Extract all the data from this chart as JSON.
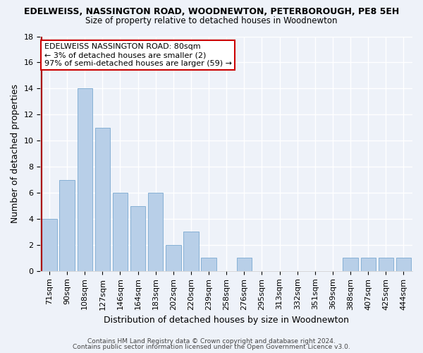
{
  "title": "EDELWEISS, NASSINGTON ROAD, WOODNEWTON, PETERBOROUGH, PE8 5EH",
  "subtitle": "Size of property relative to detached houses in Woodnewton",
  "xlabel": "Distribution of detached houses by size in Woodnewton",
  "ylabel": "Number of detached properties",
  "bar_labels": [
    "71sqm",
    "90sqm",
    "108sqm",
    "127sqm",
    "146sqm",
    "164sqm",
    "183sqm",
    "202sqm",
    "220sqm",
    "239sqm",
    "258sqm",
    "276sqm",
    "295sqm",
    "313sqm",
    "332sqm",
    "351sqm",
    "369sqm",
    "388sqm",
    "407sqm",
    "425sqm",
    "444sqm"
  ],
  "bar_values": [
    4,
    7,
    14,
    11,
    6,
    5,
    6,
    2,
    3,
    1,
    0,
    1,
    0,
    0,
    0,
    0,
    0,
    1,
    1,
    1,
    1
  ],
  "bar_color": "#b8cfe8",
  "marker_line_color": "#aa0000",
  "marker_bar_index": 0,
  "ylim": [
    0,
    18
  ],
  "yticks": [
    0,
    2,
    4,
    6,
    8,
    10,
    12,
    14,
    16,
    18
  ],
  "annotation_title": "EDELWEISS NASSINGTON ROAD: 80sqm",
  "annotation_line1": "← 3% of detached houses are smaller (2)",
  "annotation_line2": "97% of semi-detached houses are larger (59) →",
  "footer1": "Contains HM Land Registry data © Crown copyright and database right 2024.",
  "footer2": "Contains public sector information licensed under the Open Government Licence v3.0.",
  "bg_color": "#eef2f9",
  "plot_bg_color": "#eef2f9",
  "grid_color": "#ffffff",
  "annotation_box_facecolor": "#ffffff",
  "annotation_box_edgecolor": "#cc0000",
  "title_fontsize": 9,
  "subtitle_fontsize": 8.5,
  "tick_fontsize": 8,
  "xlabel_fontsize": 9,
  "ylabel_fontsize": 9,
  "footer_fontsize": 6.5,
  "annotation_fontsize": 8
}
